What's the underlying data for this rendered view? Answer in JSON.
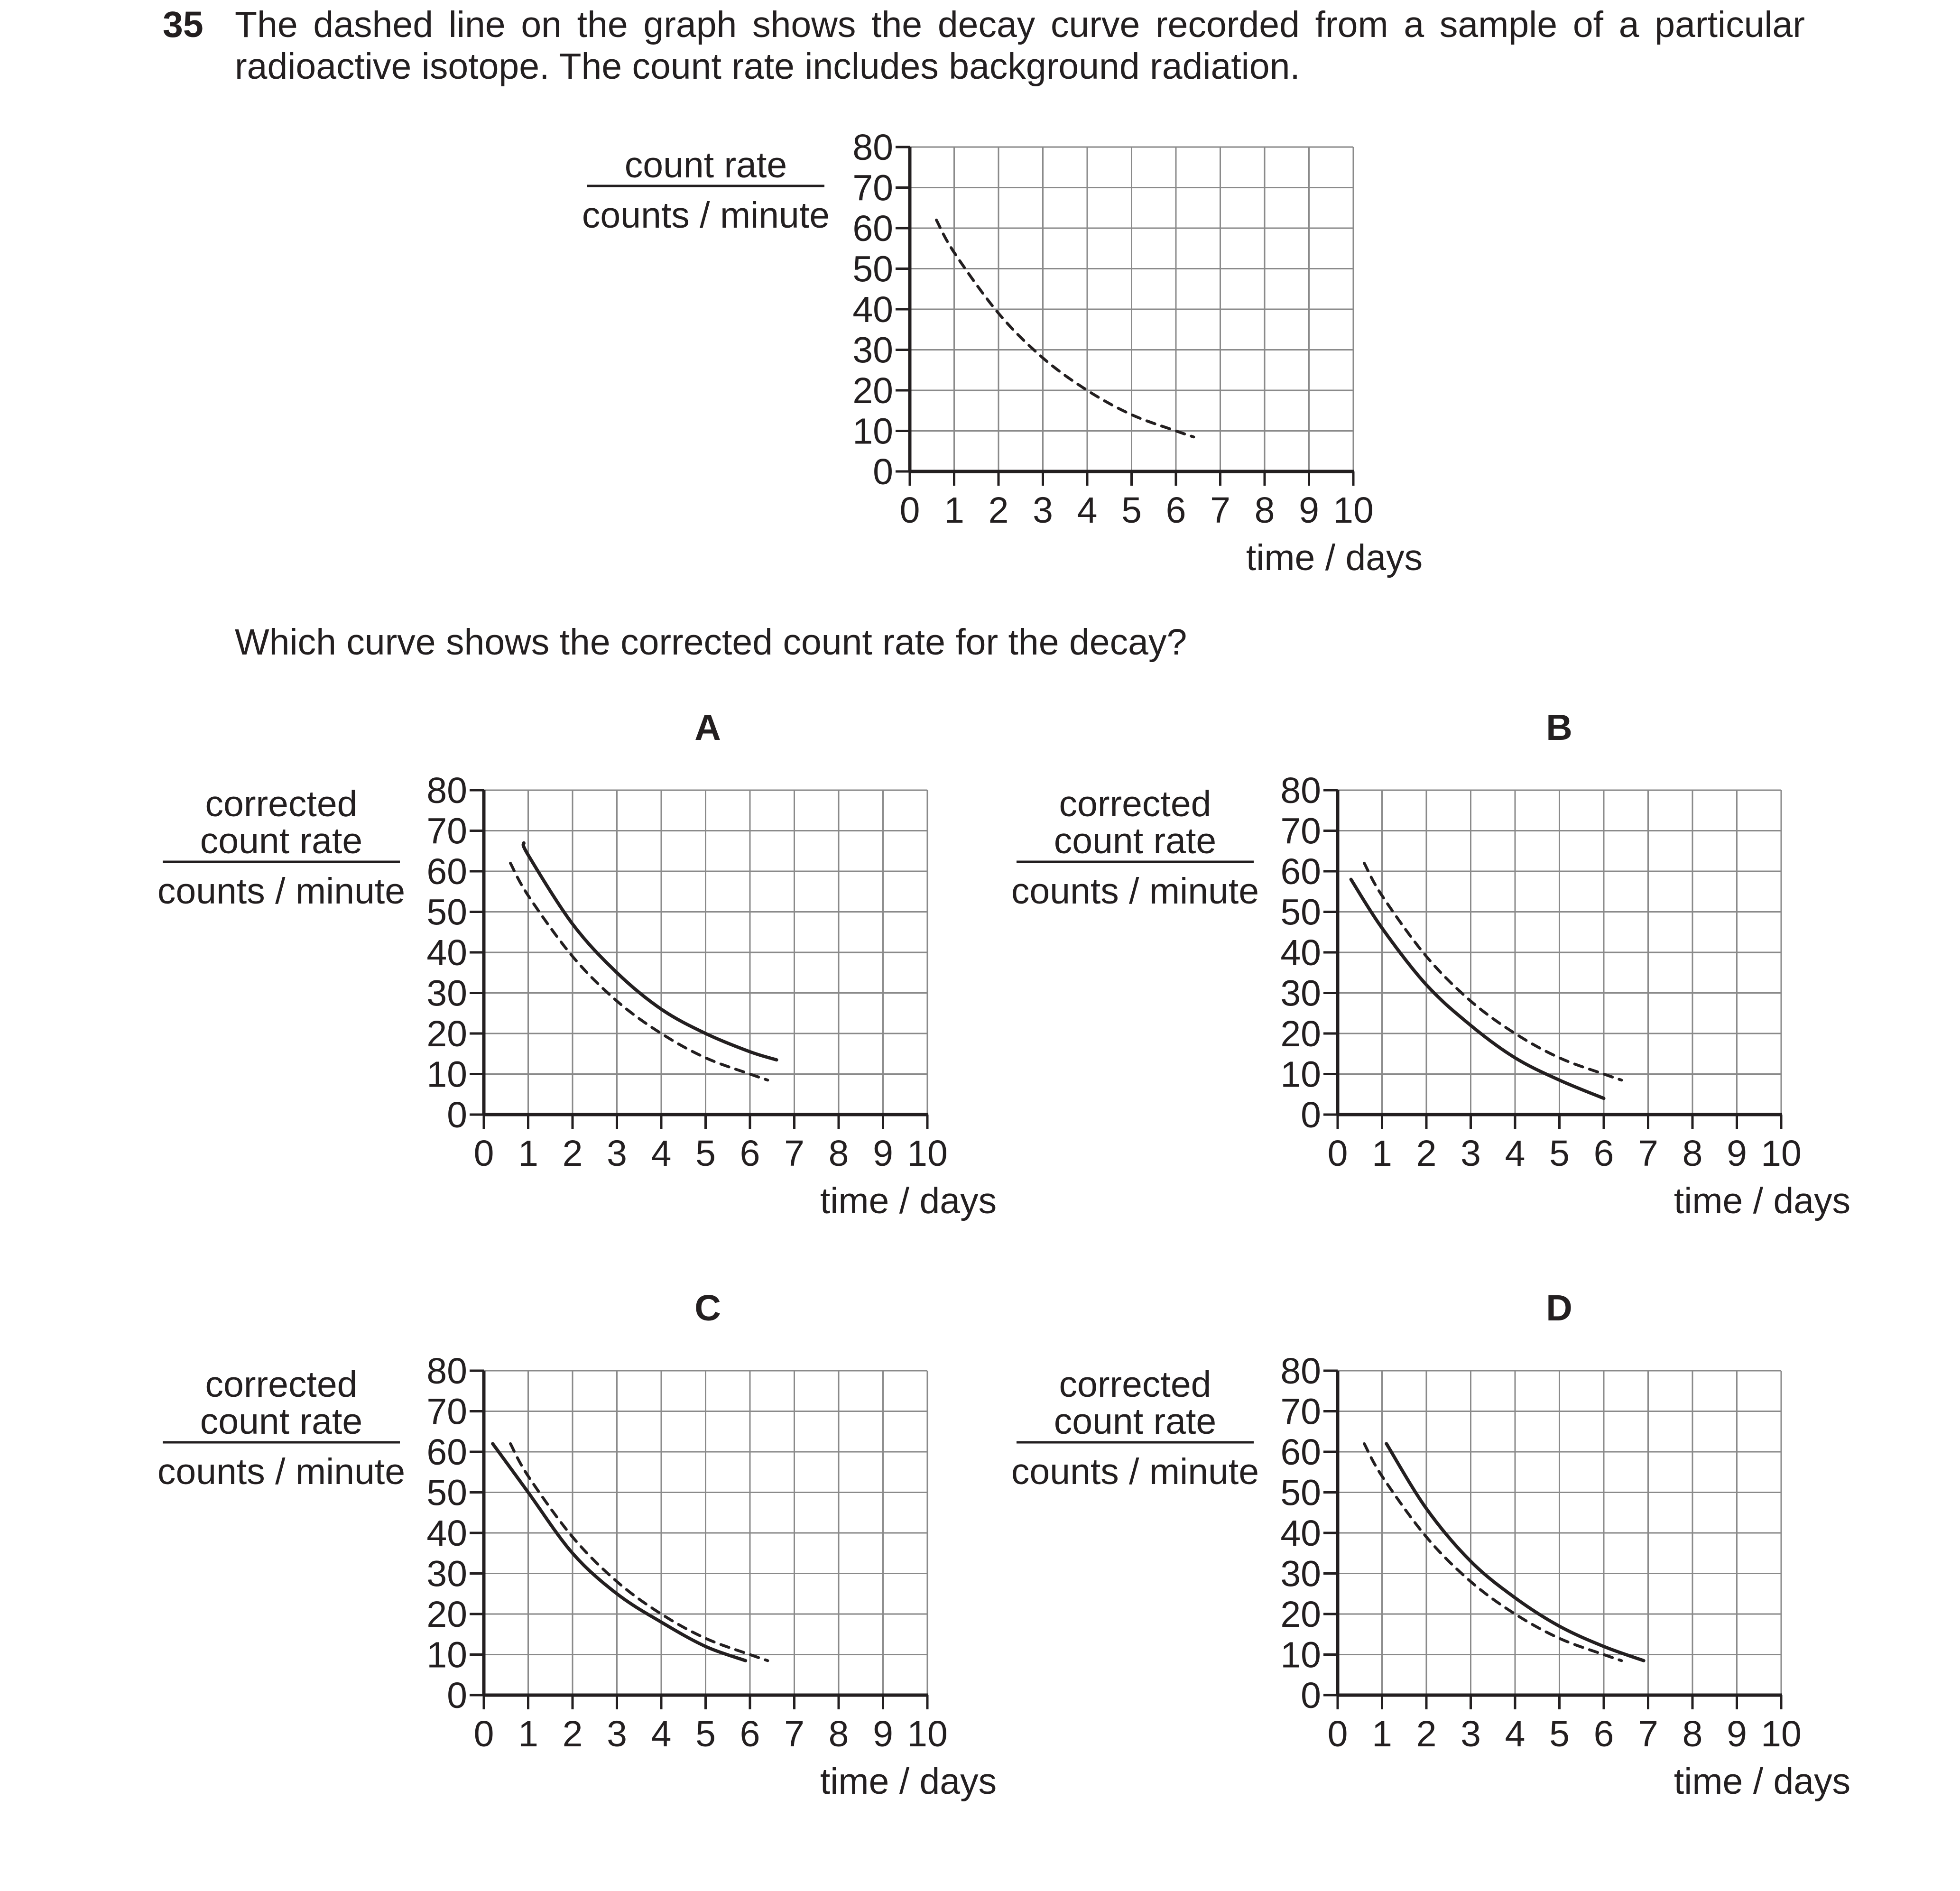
{
  "question": {
    "number": "35",
    "text": "The dashed line on the graph shows the decay curve recorded from a sample of a particular radioactive isotope. The count rate includes background radiation.",
    "prompt": "Which curve shows the corrected count rate for the decay?"
  },
  "chart_data": [
    {
      "id": "main",
      "type": "line",
      "title": "",
      "ylabel_top": "count rate",
      "ylabel_bottom": "counts / minute",
      "ylabel_lines": [],
      "xlabel": "time / days",
      "xlim": [
        0,
        10
      ],
      "ylim": [
        0,
        80
      ],
      "xticks": [
        "0",
        "1",
        "2",
        "3",
        "4",
        "5",
        "6",
        "7",
        "8",
        "9",
        "10"
      ],
      "yticks": [
        "0",
        "10",
        "20",
        "30",
        "40",
        "50",
        "60",
        "70",
        "80"
      ],
      "grid": true,
      "series": [
        {
          "style": "dashed",
          "x": [
            0.6,
            1.0,
            2.0,
            3.0,
            4.0,
            5.0,
            6.0,
            6.4
          ],
          "y": [
            62,
            54,
            39,
            28,
            20,
            14,
            10,
            8.5
          ]
        }
      ]
    },
    {
      "id": "A",
      "type": "line",
      "title": "A",
      "ylabel_lines": [
        "corrected",
        "count rate"
      ],
      "ylabel_bottom": "counts / minute",
      "xlabel": "time / days",
      "xlim": [
        0,
        10
      ],
      "ylim": [
        0,
        80
      ],
      "xticks": [
        "0",
        "1",
        "2",
        "3",
        "4",
        "5",
        "6",
        "7",
        "8",
        "9",
        "10"
      ],
      "yticks": [
        "0",
        "10",
        "20",
        "30",
        "40",
        "50",
        "60",
        "70",
        "80"
      ],
      "grid": true,
      "series": [
        {
          "style": "dashed",
          "x": [
            0.6,
            1.0,
            2.0,
            3.0,
            4.0,
            5.0,
            6.0,
            6.4
          ],
          "y": [
            62,
            54,
            39,
            28,
            20,
            14,
            10,
            8.5
          ]
        },
        {
          "style": "solid",
          "x": [
            0.9,
            1.0,
            2.0,
            3.0,
            4.0,
            5.0,
            6.0,
            6.6
          ],
          "y": [
            67,
            64,
            47,
            35,
            26,
            20,
            15.5,
            13.5
          ]
        }
      ]
    },
    {
      "id": "B",
      "type": "line",
      "title": "B",
      "ylabel_lines": [
        "corrected",
        "count rate"
      ],
      "ylabel_bottom": "counts / minute",
      "xlabel": "time / days",
      "xlim": [
        0,
        10
      ],
      "ylim": [
        0,
        80
      ],
      "xticks": [
        "0",
        "1",
        "2",
        "3",
        "4",
        "5",
        "6",
        "7",
        "8",
        "9",
        "10"
      ],
      "yticks": [
        "0",
        "10",
        "20",
        "30",
        "40",
        "50",
        "60",
        "70",
        "80"
      ],
      "grid": true,
      "series": [
        {
          "style": "dashed",
          "x": [
            0.6,
            1.0,
            2.0,
            3.0,
            4.0,
            5.0,
            6.0,
            6.4
          ],
          "y": [
            62,
            54,
            39,
            28,
            20,
            14,
            10,
            8.5
          ]
        },
        {
          "style": "solid",
          "x": [
            0.3,
            1.0,
            2.0,
            3.0,
            4.0,
            5.0,
            6.0
          ],
          "y": [
            58,
            46,
            32,
            22,
            14,
            8.5,
            4
          ]
        }
      ]
    },
    {
      "id": "C",
      "type": "line",
      "title": "C",
      "ylabel_lines": [
        "corrected",
        "count rate"
      ],
      "ylabel_bottom": "counts / minute",
      "xlabel": "time / days",
      "xlim": [
        0,
        10
      ],
      "ylim": [
        0,
        80
      ],
      "xticks": [
        "0",
        "1",
        "2",
        "3",
        "4",
        "5",
        "6",
        "7",
        "8",
        "9",
        "10"
      ],
      "yticks": [
        "0",
        "10",
        "20",
        "30",
        "40",
        "50",
        "60",
        "70",
        "80"
      ],
      "grid": true,
      "series": [
        {
          "style": "dashed",
          "x": [
            0.6,
            1.0,
            2.0,
            3.0,
            4.0,
            5.0,
            6.0,
            6.4
          ],
          "y": [
            62,
            54,
            39,
            28,
            20,
            14,
            10,
            8.5
          ]
        },
        {
          "style": "solid",
          "x": [
            0.2,
            1.0,
            2.0,
            3.0,
            4.0,
            5.0,
            5.9
          ],
          "y": [
            62,
            50,
            35,
            25,
            18,
            12,
            8.5
          ]
        }
      ]
    },
    {
      "id": "D",
      "type": "line",
      "title": "D",
      "ylabel_lines": [
        "corrected",
        "count rate"
      ],
      "ylabel_bottom": "counts / minute",
      "xlabel": "time / days",
      "xlim": [
        0,
        10
      ],
      "ylim": [
        0,
        80
      ],
      "xticks": [
        "0",
        "1",
        "2",
        "3",
        "4",
        "5",
        "6",
        "7",
        "8",
        "9",
        "10"
      ],
      "yticks": [
        "0",
        "10",
        "20",
        "30",
        "40",
        "50",
        "60",
        "70",
        "80"
      ],
      "grid": true,
      "series": [
        {
          "style": "dashed",
          "x": [
            0.6,
            1.0,
            2.0,
            3.0,
            4.0,
            5.0,
            6.0,
            6.4
          ],
          "y": [
            62,
            54,
            39,
            28,
            20,
            14,
            10,
            8.5
          ]
        },
        {
          "style": "solid",
          "x": [
            1.1,
            2.0,
            3.0,
            4.0,
            5.0,
            6.0,
            6.9
          ],
          "y": [
            62,
            46,
            33,
            24,
            17,
            12,
            8.5
          ]
        }
      ]
    }
  ]
}
